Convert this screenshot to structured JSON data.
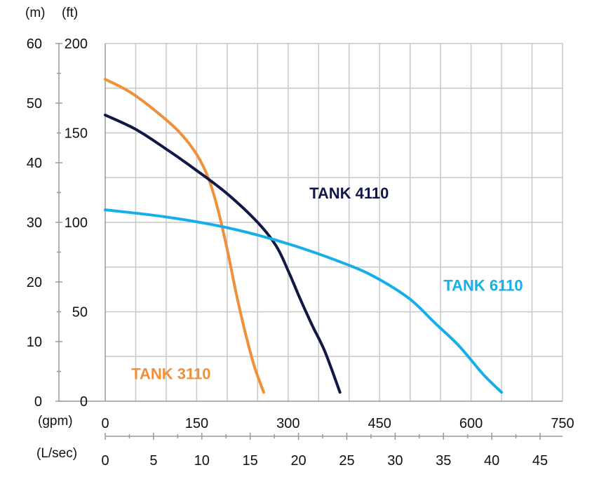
{
  "chart_data": {
    "type": "line",
    "title": "",
    "units": {
      "meters": "(m)",
      "feet": "(ft)",
      "gpm": "(gpm)",
      "lsec": "(L/sec)"
    },
    "axes": {
      "y_m": {
        "ticks": [
          "60",
          "50",
          "40",
          "30",
          "20",
          "10",
          "0"
        ],
        "range": [
          0,
          60
        ]
      },
      "y_ft": {
        "ticks": [
          "200",
          "150",
          "100",
          "50",
          "0"
        ],
        "range": [
          0,
          200
        ]
      },
      "x_gpm": {
        "ticks": [
          "0",
          "150",
          "300",
          "450",
          "600",
          "750"
        ],
        "range": [
          0,
          750
        ]
      },
      "x_lsec": {
        "ticks": [
          "0",
          "5",
          "10",
          "15",
          "20",
          "25",
          "30",
          "35",
          "40",
          "45"
        ]
      }
    },
    "grid": true,
    "series": [
      {
        "name": "TANK 3110",
        "color": "#F0903A",
        "label_pos": [
          108,
          15.5
        ],
        "x_gpm": [
          0,
          40,
          80,
          120,
          150,
          170,
          185,
          200,
          215,
          230,
          245,
          260
        ],
        "y_ft": [
          180,
          173,
          163,
          151,
          138,
          124,
          107,
          85,
          60,
          38,
          19,
          5
        ]
      },
      {
        "name": "TANK 4110",
        "color": "#111848",
        "label_pos": [
          400,
          116.5
        ],
        "x_gpm": [
          0,
          50,
          100,
          150,
          200,
          250,
          280,
          300,
          320,
          340,
          360,
          385
        ],
        "y_ft": [
          160,
          152,
          141,
          129,
          116,
          100,
          87,
          73,
          57,
          42,
          28,
          5
        ]
      },
      {
        "name": "TANK 6110",
        "color": "#15AEE8",
        "label_pos": [
          620,
          65
        ],
        "x_gpm": [
          0,
          100,
          200,
          300,
          400,
          450,
          500,
          540,
          580,
          620,
          650
        ],
        "y_ft": [
          107,
          103,
          97,
          88,
          76,
          68,
          57,
          44,
          31,
          15,
          5
        ]
      }
    ]
  }
}
